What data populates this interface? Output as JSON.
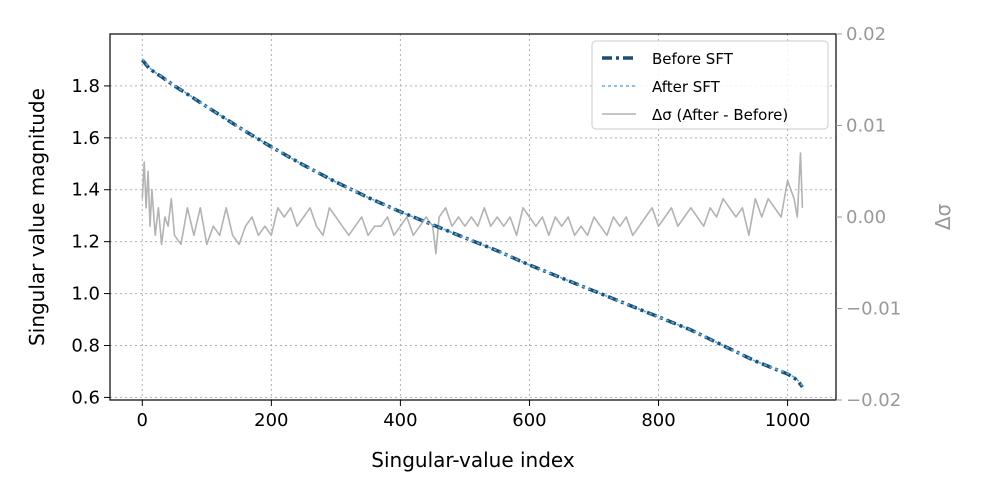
{
  "chart_data": {
    "type": "line",
    "xlabel": "Singular-value index",
    "ylabel": "Singular value magnitude",
    "y2label": "Δσ",
    "xlim": [
      -50,
      1075
    ],
    "ylim": [
      0.59,
      2.0
    ],
    "y2lim": [
      -0.02,
      0.02
    ],
    "xticks": [
      0,
      200,
      400,
      600,
      800,
      1000
    ],
    "xtick_labels": [
      "0",
      "200",
      "400",
      "600",
      "800",
      "1000"
    ],
    "yticks": [
      0.6,
      0.8,
      1.0,
      1.2,
      1.4,
      1.6,
      1.8
    ],
    "ytick_labels": [
      "0.6",
      "0.8",
      "1.0",
      "1.2",
      "1.4",
      "1.6",
      "1.8"
    ],
    "y2ticks": [
      0.02,
      0.01,
      0.0,
      -0.01,
      -0.02
    ],
    "y2tick_labels": [
      "0.02",
      "0.01",
      "0.00",
      "−0.01",
      "−0.02"
    ],
    "grid": true,
    "legend_position": "top-right",
    "colors": {
      "before": "#1b4f72",
      "after": "#5dade2",
      "delta": "#b3b3b3",
      "right_axis": "#999999"
    },
    "series": [
      {
        "name": "Before SFT",
        "axis": "left",
        "style": "dashed",
        "x": [
          0,
          5,
          10,
          15,
          20,
          30,
          50,
          75,
          100,
          150,
          200,
          250,
          300,
          350,
          400,
          450,
          500,
          550,
          600,
          650,
          700,
          750,
          800,
          850,
          900,
          950,
          980,
          1000,
          1010,
          1015,
          1020,
          1023
        ],
        "values": [
          1.9,
          1.885,
          1.87,
          1.86,
          1.85,
          1.835,
          1.8,
          1.76,
          1.72,
          1.64,
          1.565,
          1.495,
          1.43,
          1.37,
          1.315,
          1.265,
          1.215,
          1.165,
          1.11,
          1.06,
          1.01,
          0.96,
          0.91,
          0.86,
          0.8,
          0.74,
          0.71,
          0.69,
          0.675,
          0.665,
          0.65,
          0.64
        ]
      },
      {
        "name": "After SFT",
        "axis": "left",
        "style": "dotted",
        "x": [
          0,
          5,
          10,
          15,
          20,
          30,
          50,
          75,
          100,
          150,
          200,
          250,
          300,
          350,
          400,
          450,
          500,
          550,
          600,
          650,
          700,
          750,
          800,
          850,
          900,
          950,
          980,
          1000,
          1010,
          1015,
          1020,
          1023
        ],
        "values": [
          1.905,
          1.888,
          1.873,
          1.862,
          1.852,
          1.836,
          1.801,
          1.761,
          1.72,
          1.64,
          1.565,
          1.495,
          1.43,
          1.37,
          1.315,
          1.265,
          1.215,
          1.165,
          1.11,
          1.06,
          1.01,
          0.96,
          0.91,
          0.86,
          0.8,
          0.74,
          0.711,
          0.692,
          0.678,
          0.668,
          0.654,
          0.645
        ]
      },
      {
        "name": "Δσ (After - Before)",
        "axis": "right",
        "style": "solid",
        "x": [
          0,
          3,
          6,
          9,
          12,
          15,
          20,
          25,
          30,
          35,
          40,
          45,
          50,
          60,
          70,
          80,
          90,
          100,
          110,
          120,
          130,
          140,
          150,
          160,
          170,
          180,
          190,
          200,
          210,
          220,
          230,
          240,
          250,
          260,
          270,
          280,
          290,
          300,
          310,
          320,
          330,
          340,
          350,
          360,
          370,
          380,
          390,
          400,
          410,
          420,
          430,
          440,
          450,
          455,
          460,
          470,
          480,
          490,
          500,
          510,
          520,
          530,
          540,
          550,
          560,
          570,
          580,
          590,
          600,
          610,
          620,
          630,
          640,
          650,
          660,
          670,
          680,
          690,
          700,
          710,
          720,
          730,
          740,
          750,
          760,
          770,
          780,
          790,
          800,
          810,
          820,
          830,
          840,
          850,
          860,
          870,
          880,
          890,
          900,
          910,
          920,
          930,
          940,
          950,
          960,
          970,
          980,
          990,
          1000,
          1005,
          1010,
          1015,
          1020,
          1023
        ],
        "values": [
          0.002,
          0.006,
          0.001,
          0.005,
          -0.001,
          0.003,
          -0.002,
          0.001,
          -0.003,
          0.0,
          -0.001,
          0.002,
          -0.002,
          -0.003,
          0.001,
          -0.002,
          0.001,
          -0.003,
          -0.001,
          -0.002,
          0.001,
          -0.002,
          -0.003,
          -0.001,
          0.0,
          -0.002,
          -0.001,
          -0.002,
          0.001,
          0.0,
          0.001,
          -0.001,
          0.0,
          0.001,
          -0.001,
          -0.002,
          0.001,
          0.0,
          -0.001,
          -0.002,
          -0.001,
          0.0,
          -0.002,
          -0.001,
          -0.001,
          0.0,
          -0.002,
          -0.001,
          0.0,
          -0.002,
          -0.001,
          0.0,
          -0.001,
          -0.004,
          0.0,
          0.001,
          -0.001,
          0.0,
          -0.001,
          0.0,
          -0.001,
          0.001,
          -0.001,
          0.0,
          -0.001,
          0.0,
          -0.002,
          0.001,
          0.0,
          -0.001,
          0.0,
          -0.002,
          0.0,
          -0.001,
          0.0,
          -0.002,
          -0.001,
          -0.002,
          0.0,
          -0.001,
          -0.002,
          0.0,
          -0.001,
          0.0,
          -0.002,
          -0.001,
          0.0,
          0.001,
          -0.001,
          0.0,
          0.001,
          -0.001,
          0.0,
          0.001,
          0.0,
          -0.001,
          0.001,
          0.0,
          0.002,
          0.001,
          0.0,
          0.001,
          -0.002,
          0.002,
          0.0,
          0.002,
          0.001,
          0.0,
          0.004,
          0.003,
          0.002,
          0.0,
          0.007,
          0.001
        ]
      }
    ]
  }
}
